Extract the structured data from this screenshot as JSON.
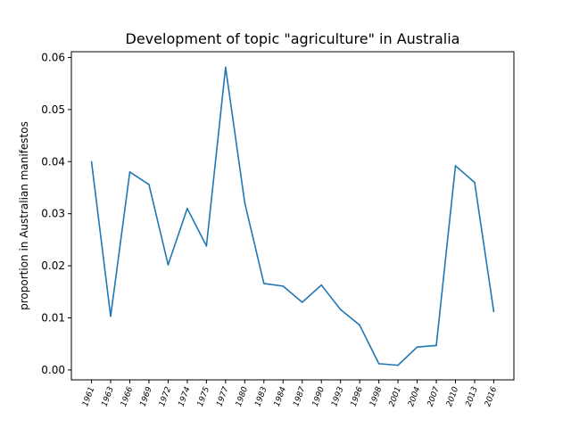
{
  "chart_data": {
    "type": "line",
    "title": "Development of topic \"agriculture\" in Australia",
    "xlabel": "",
    "ylabel": "proportion in Australian manifestos",
    "categories": [
      "1961",
      "1963",
      "1966",
      "1969",
      "1972",
      "1974",
      "1975",
      "1977",
      "1980",
      "1983",
      "1984",
      "1987",
      "1990",
      "1993",
      "1996",
      "1998",
      "2001",
      "2004",
      "2007",
      "2010",
      "2013",
      "2016"
    ],
    "series": [
      {
        "values": [
          0.04,
          0.0103,
          0.038,
          0.0356,
          0.0202,
          0.031,
          0.0238,
          0.0581,
          0.0321,
          0.0166,
          0.0161,
          0.013,
          0.0163,
          0.0116,
          0.0086,
          0.0012,
          0.0009,
          0.0044,
          0.0047,
          0.0392,
          0.036,
          0.0112
        ],
        "color": "#1f77b4"
      }
    ],
    "ylim": [
      -0.0019,
      0.0611
    ],
    "yticks": [
      0.0,
      0.01,
      0.02,
      0.03,
      0.04,
      0.05,
      0.06
    ],
    "ytick_labels": [
      "0.00",
      "0.01",
      "0.02",
      "0.03",
      "0.04",
      "0.05",
      "0.06"
    ],
    "grid": false,
    "legend": "none"
  }
}
